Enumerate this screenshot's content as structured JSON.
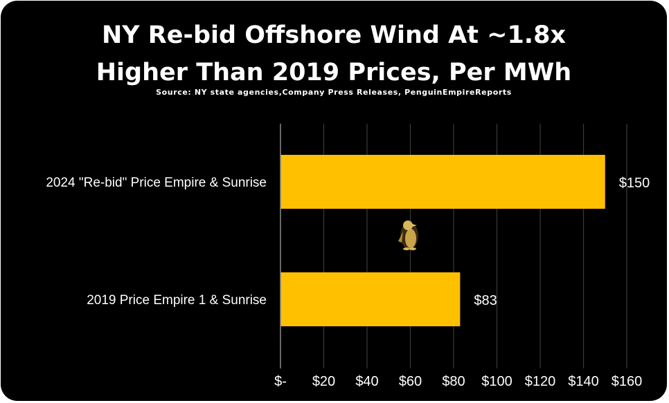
{
  "chart_data": {
    "type": "bar",
    "orientation": "horizontal",
    "title_line1": "NY Re-bid Offshore Wind At ~1.8x",
    "title_line2": "Higher Than 2019 Prices, Per MWh",
    "subtitle": "Source: NY state agencies,Company Press Releases, PenguinEmpireReports",
    "categories": [
      "2024 \"Re-bid\" Price Empire & Sunrise",
      "2019 Price Empire 1 & Sunrise"
    ],
    "values": [
      150,
      83
    ],
    "value_labels": [
      "$150",
      "$83"
    ],
    "x_ticks": [
      0,
      20,
      40,
      60,
      80,
      100,
      120,
      140,
      160
    ],
    "x_tick_labels": [
      "$-",
      "$20",
      "$40",
      "$60",
      "$80",
      "$100",
      "$120",
      "$140",
      "$160"
    ],
    "xlim": [
      0,
      160
    ],
    "grid": true,
    "legend": "none",
    "colors": {
      "bar": "#FFC000",
      "background": "#000000",
      "text": "#FFFFFF",
      "grid": "#3a3a3a",
      "axis": "#8a8a8a"
    },
    "logo_icon": "penguin-logo-icon"
  }
}
